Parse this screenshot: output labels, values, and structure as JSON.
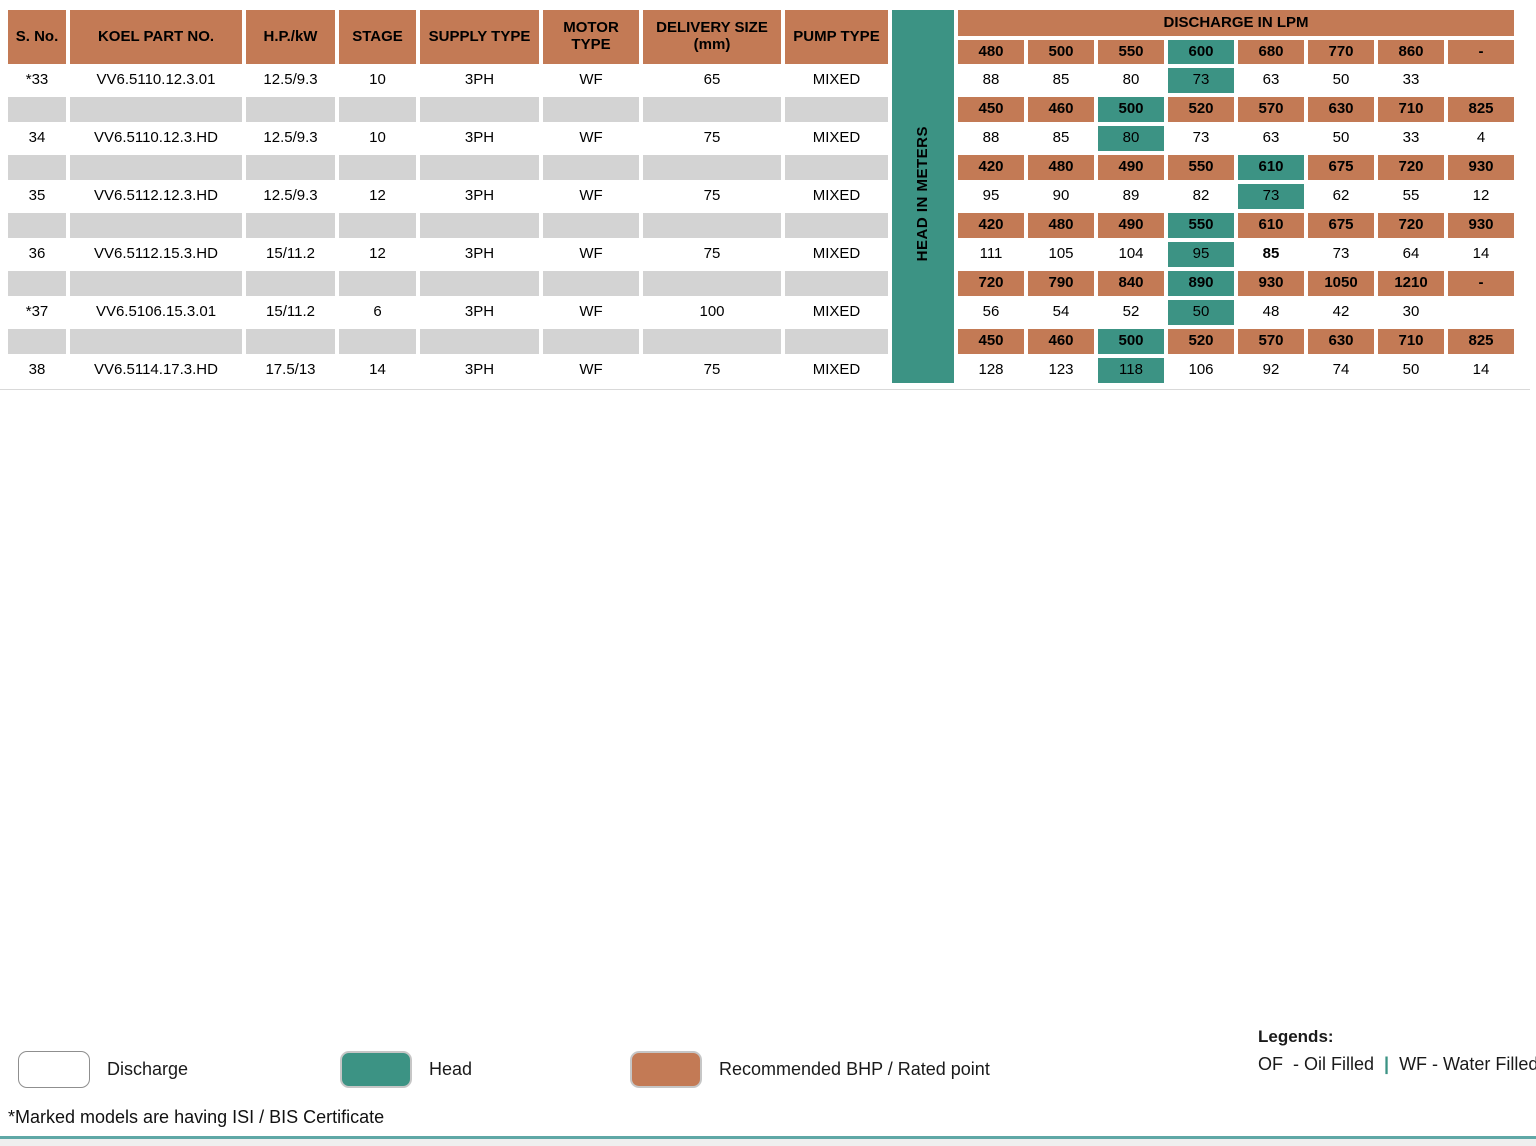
{
  "colors": {
    "orange": "#C37A55",
    "teal": "#3C9384",
    "gray_fill": "#D3D3D3",
    "bottom_rule": "#5FA8A6"
  },
  "table": {
    "left_headers": [
      "S. No.",
      "KOEL PART NO.",
      "H.P./kW",
      "STAGE",
      "SUPPLY TYPE",
      "MOTOR TYPE",
      "DELIVERY SIZE (mm)",
      "PUMP TYPE"
    ],
    "head_band": "HEAD IN METERS",
    "discharge_title": "DISCHARGE IN LPM",
    "discharge_cols": [
      "480",
      "500",
      "550",
      "600",
      "680",
      "770",
      "860",
      "-"
    ],
    "discharge_head_index": 3,
    "rows": [
      {
        "kind": "model",
        "cells": [
          "*33",
          "VV6.5110.12.3.01",
          "12.5/9.3",
          "10",
          "3PH",
          "WF",
          "65",
          "MIXED"
        ],
        "values": [
          "88",
          "85",
          "80",
          "73",
          "63",
          "50",
          "33",
          ""
        ],
        "head_index": 3,
        "bold_index": null
      },
      {
        "kind": "bhp",
        "values": [
          "450",
          "460",
          "500",
          "520",
          "570",
          "630",
          "710",
          "825"
        ],
        "head_index": 2
      },
      {
        "kind": "model",
        "cells": [
          "34",
          "VV6.5110.12.3.HD",
          "12.5/9.3",
          "10",
          "3PH",
          "WF",
          "75",
          "MIXED"
        ],
        "values": [
          "88",
          "85",
          "80",
          "73",
          "63",
          "50",
          "33",
          "4"
        ],
        "head_index": 2,
        "bold_index": null
      },
      {
        "kind": "bhp",
        "values": [
          "420",
          "480",
          "490",
          "550",
          "610",
          "675",
          "720",
          "930"
        ],
        "head_index": 4
      },
      {
        "kind": "model",
        "cells": [
          "35",
          "VV6.5112.12.3.HD",
          "12.5/9.3",
          "12",
          "3PH",
          "WF",
          "75",
          "MIXED"
        ],
        "values": [
          "95",
          "90",
          "89",
          "82",
          "73",
          "62",
          "55",
          "12"
        ],
        "head_index": 4,
        "bold_index": null
      },
      {
        "kind": "bhp",
        "values": [
          "420",
          "480",
          "490",
          "550",
          "610",
          "675",
          "720",
          "930"
        ],
        "head_index": 3
      },
      {
        "kind": "model",
        "cells": [
          "36",
          "VV6.5112.15.3.HD",
          "15/11.2",
          "12",
          "3PH",
          "WF",
          "75",
          "MIXED"
        ],
        "values": [
          "111",
          "105",
          "104",
          "95",
          "85",
          "73",
          "64",
          "14"
        ],
        "head_index": 3,
        "bold_index": 4
      },
      {
        "kind": "bhp",
        "values": [
          "720",
          "790",
          "840",
          "890",
          "930",
          "1050",
          "1210",
          "-"
        ],
        "head_index": 3
      },
      {
        "kind": "model",
        "cells": [
          "*37",
          "VV6.5106.15.3.01",
          "15/11.2",
          "6",
          "3PH",
          "WF",
          "100",
          "MIXED"
        ],
        "values": [
          "56",
          "54",
          "52",
          "50",
          "48",
          "42",
          "30",
          ""
        ],
        "head_index": 3,
        "bold_index": null
      },
      {
        "kind": "bhp",
        "values": [
          "450",
          "460",
          "500",
          "520",
          "570",
          "630",
          "710",
          "825"
        ],
        "head_index": 2
      },
      {
        "kind": "model",
        "cells": [
          "38",
          "VV6.5114.17.3.HD",
          "17.5/13",
          "14",
          "3PH",
          "WF",
          "75",
          "MIXED"
        ],
        "values": [
          "128",
          "123",
          "118",
          "106",
          "92",
          "74",
          "50",
          "14"
        ],
        "head_index": 2,
        "bold_index": null
      }
    ]
  },
  "legend": {
    "items": [
      {
        "swatch": "discharge",
        "label": "Discharge"
      },
      {
        "swatch": "head",
        "label": "Head"
      },
      {
        "swatch": "bhp",
        "label": "Recommended BHP / Rated point"
      }
    ],
    "legends_title": "Legends:",
    "of_label": "OF  - Oil Filled",
    "separator": "|",
    "wf_label": "WF - Water Filled"
  },
  "footnote": "*Marked models are having ISI / BIS Certificate"
}
